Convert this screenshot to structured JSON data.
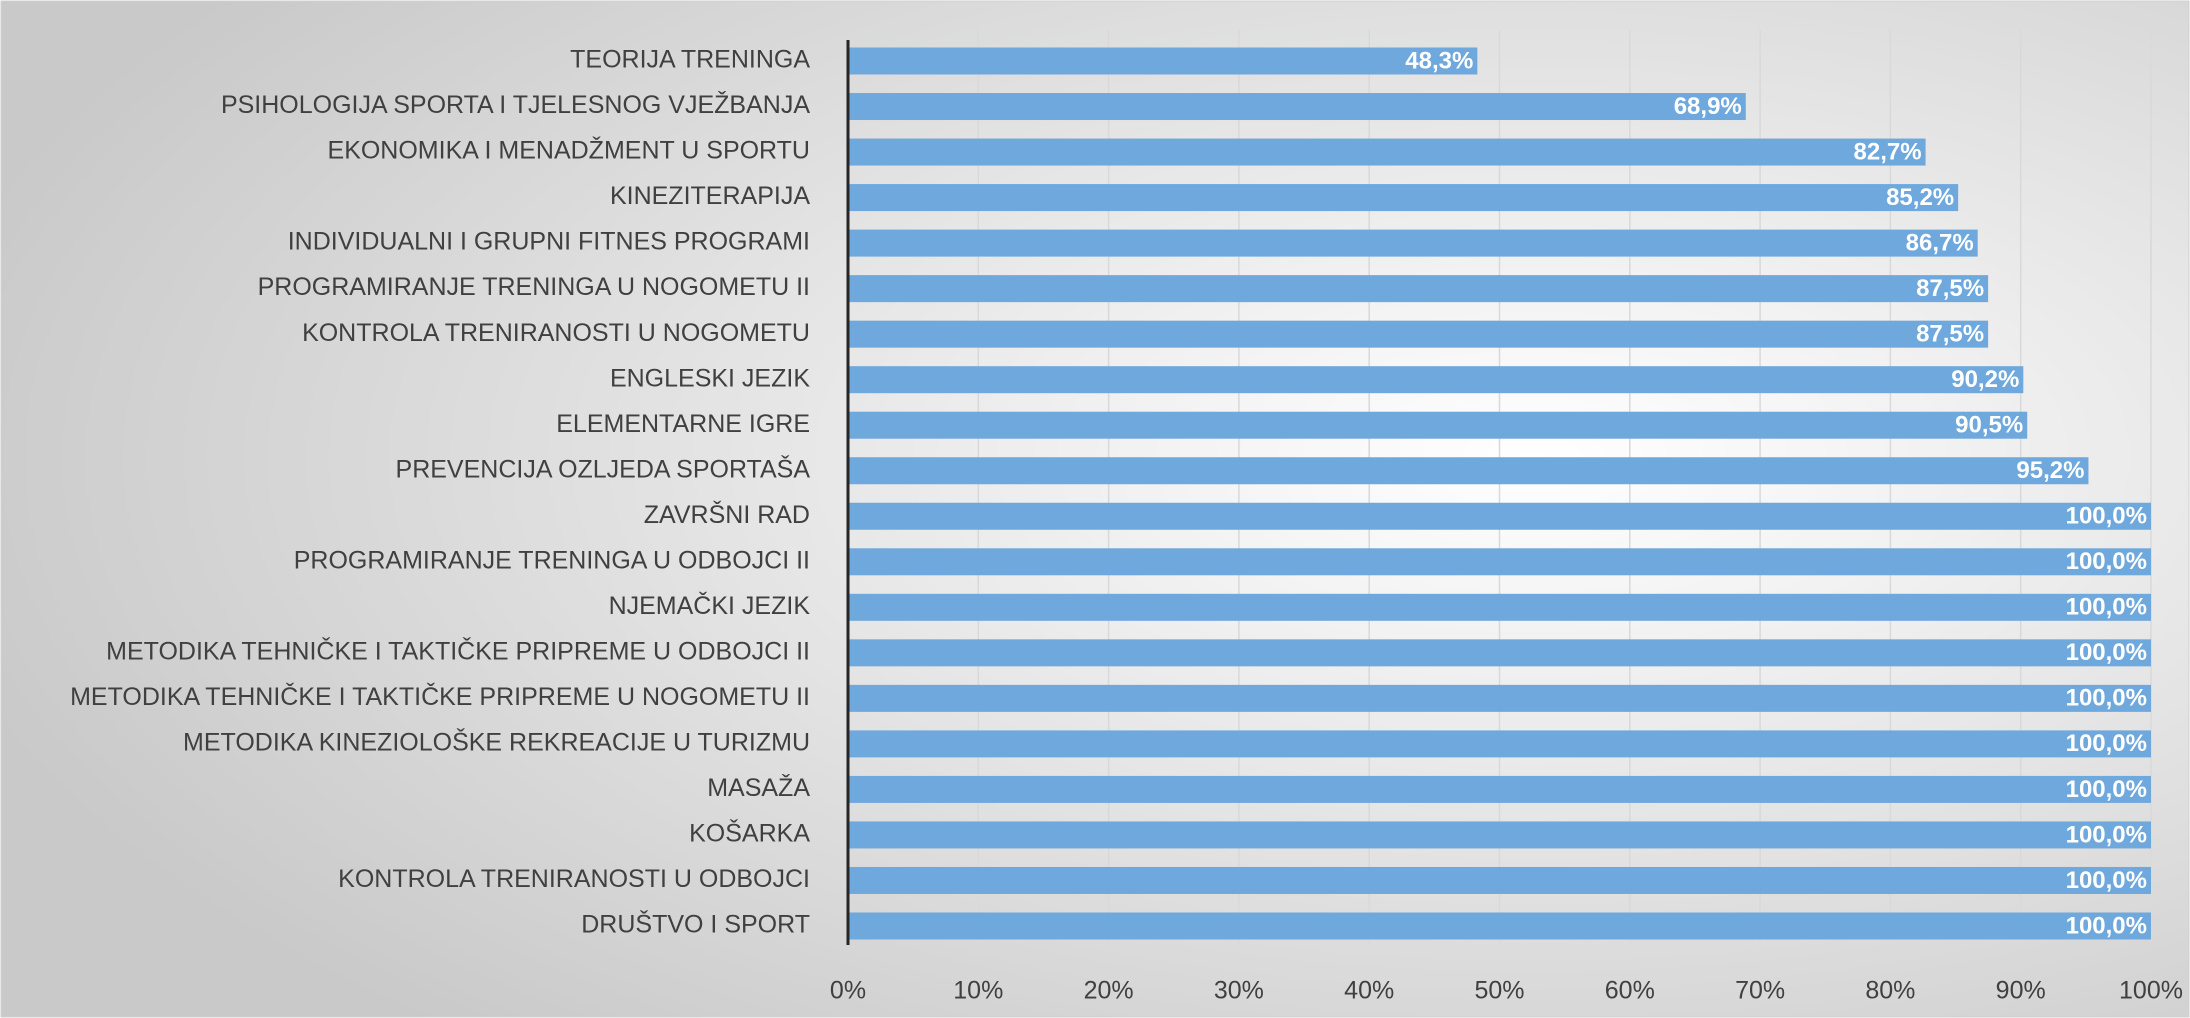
{
  "chart_data": {
    "type": "barh",
    "categories": [
      "TEORIJA TRENINGA",
      "PSIHOLOGIJA SPORTA I TJELESNOG VJEŽBANJA",
      "EKONOMIKA I MENADŽMENT U SPORTU",
      "KINEZITERAPIJA",
      "INDIVIDUALNI I GRUPNI FITNES PROGRAMI",
      "PROGRAMIRANJE TRENINGA U NOGOMETU II",
      "KONTROLA TRENIRANOSTI U NOGOMETU",
      "ENGLESKI JEZIK",
      "ELEMENTARNE IGRE",
      "PREVENCIJA OZLJEDA SPORTAŠA",
      "ZAVRŠNI RAD",
      "PROGRAMIRANJE TRENINGA U ODBOJCI II",
      "NJEMAČKI JEZIK",
      "METODIKA TEHNIČKE I TAKTIČKE PRIPREME U ODBOJCI II",
      "METODIKA TEHNIČKE I TAKTIČKE PRIPREME U NOGOMETU II",
      "METODIKA KINEZIOLOŠKE REKREACIJE U TURIZMU",
      "MASAŽA",
      "KOŠARKA",
      "KONTROLA TRENIRANOSTI U ODBOJCI",
      "DRUŠTVO I SPORT"
    ],
    "values": [
      48.3,
      68.9,
      82.7,
      85.2,
      86.7,
      87.5,
      87.5,
      90.2,
      90.5,
      95.2,
      100,
      100,
      100,
      100,
      100,
      100,
      100,
      100,
      100,
      100
    ],
    "value_labels": [
      "48,3%",
      "68,9%",
      "82,7%",
      "85,2%",
      "86,7%",
      "87,5%",
      "87,5%",
      "90,2%",
      "90,5%",
      "95,2%",
      "100,0%",
      "100,0%",
      "100,0%",
      "100,0%",
      "100,0%",
      "100,0%",
      "100,0%",
      "100,0%",
      "100,0%",
      "100,0%"
    ],
    "color": "#6fa8dc",
    "xlim": [
      0,
      100
    ],
    "xticks": [
      {
        "value": 0,
        "label": "0%"
      },
      {
        "value": 10,
        "label": "10%"
      },
      {
        "value": 20,
        "label": "20%"
      },
      {
        "value": 30,
        "label": "30%"
      },
      {
        "value": 40,
        "label": "40%"
      },
      {
        "value": 50,
        "label": "50%"
      },
      {
        "value": 60,
        "label": "60%"
      },
      {
        "value": 70,
        "label": "70%"
      },
      {
        "value": 80,
        "label": "80%"
      },
      {
        "value": 90,
        "label": "90%"
      },
      {
        "value": 100,
        "label": "100%"
      }
    ],
    "grid": true
  }
}
